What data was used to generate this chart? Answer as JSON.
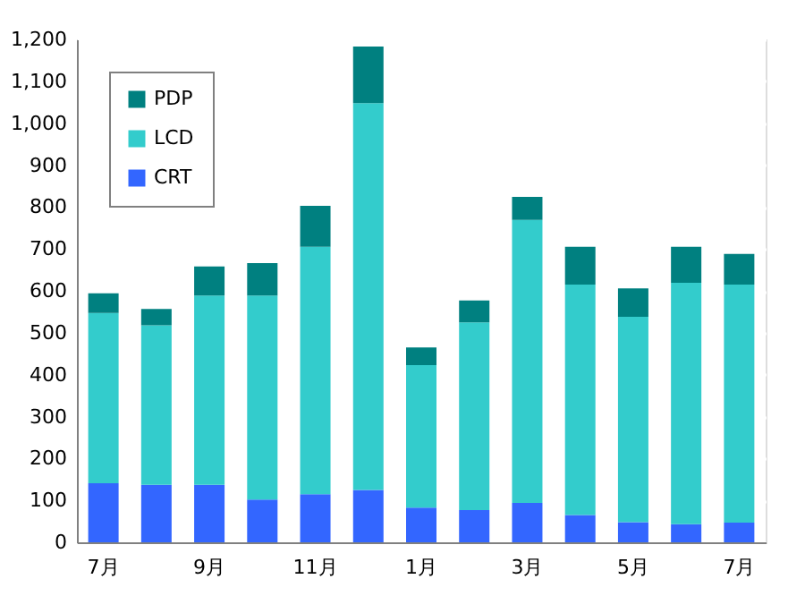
{
  "chart_data": {
    "type": "bar",
    "stacked": true,
    "categories": [
      "7月",
      null,
      "9月",
      null,
      "11月",
      null,
      "1月",
      null,
      "3月",
      null,
      "5月",
      null,
      "7月"
    ],
    "series": [
      {
        "name": "CRT",
        "color": "#3366ff",
        "values": [
          141,
          137,
          137,
          102,
          115,
          125,
          83,
          77,
          94,
          65,
          48,
          43,
          47
        ]
      },
      {
        "name": "LCD",
        "color": "#33cccc",
        "values": [
          406,
          381,
          452,
          487,
          590,
          923,
          340,
          448,
          675,
          550,
          490,
          576,
          568
        ]
      },
      {
        "name": "PDP",
        "color": "#008080",
        "values": [
          47,
          39,
          69,
          77,
          98,
          135,
          42,
          52,
          55,
          90,
          68,
          86,
          73
        ]
      }
    ],
    "ylim": [
      0,
      1200
    ],
    "yticks": [
      {
        "value": 0,
        "label": "0"
      },
      {
        "value": 100,
        "label": "100"
      },
      {
        "value": 200,
        "label": "200"
      },
      {
        "value": 300,
        "label": "300"
      },
      {
        "value": 400,
        "label": "400"
      },
      {
        "value": 500,
        "label": "500"
      },
      {
        "value": 600,
        "label": "600"
      },
      {
        "value": 700,
        "label": "700"
      },
      {
        "value": 800,
        "label": "800"
      },
      {
        "value": 900,
        "label": "900"
      },
      {
        "value": 1000,
        "label": "1,000"
      },
      {
        "value": 1100,
        "label": "1,100"
      },
      {
        "value": 1200,
        "label": "1,200"
      }
    ],
    "grid": "y",
    "legend": "top left"
  }
}
